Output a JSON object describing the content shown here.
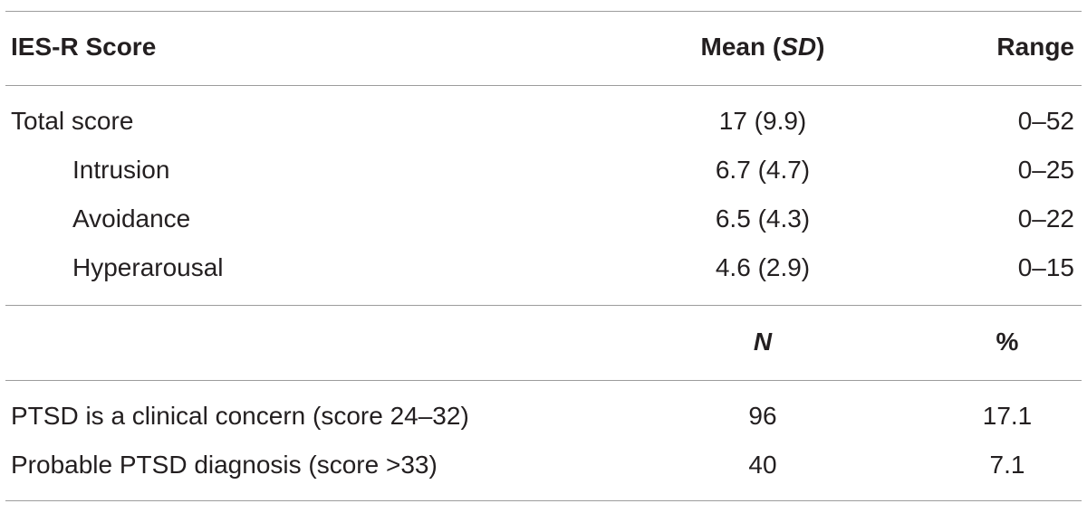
{
  "header": {
    "col1": "IES-R Score",
    "col2_prefix": "Mean (",
    "col2_italic": "SD",
    "col2_suffix": ")",
    "col3": "Range"
  },
  "score_rows": [
    {
      "label": "Total score",
      "mean_sd": "17 (9.9)",
      "range": "0–52"
    },
    {
      "label": "Intrusion",
      "mean_sd": "6.7 (4.7)",
      "range": "0–25"
    },
    {
      "label": "Avoidance",
      "mean_sd": "6.5 (4.3)",
      "range": "0–22"
    },
    {
      "label": "Hyperarousal",
      "mean_sd": "4.6 (2.9)",
      "range": "0–15"
    }
  ],
  "subheader": {
    "col2": "N",
    "col3": "%"
  },
  "ptsd_rows": [
    {
      "label": "PTSD is a clinical concern (score 24–32)",
      "n": "96",
      "pct": "17.1"
    },
    {
      "label": "Probable PTSD diagnosis (score >33)",
      "n": "40",
      "pct": "7.1"
    }
  ]
}
